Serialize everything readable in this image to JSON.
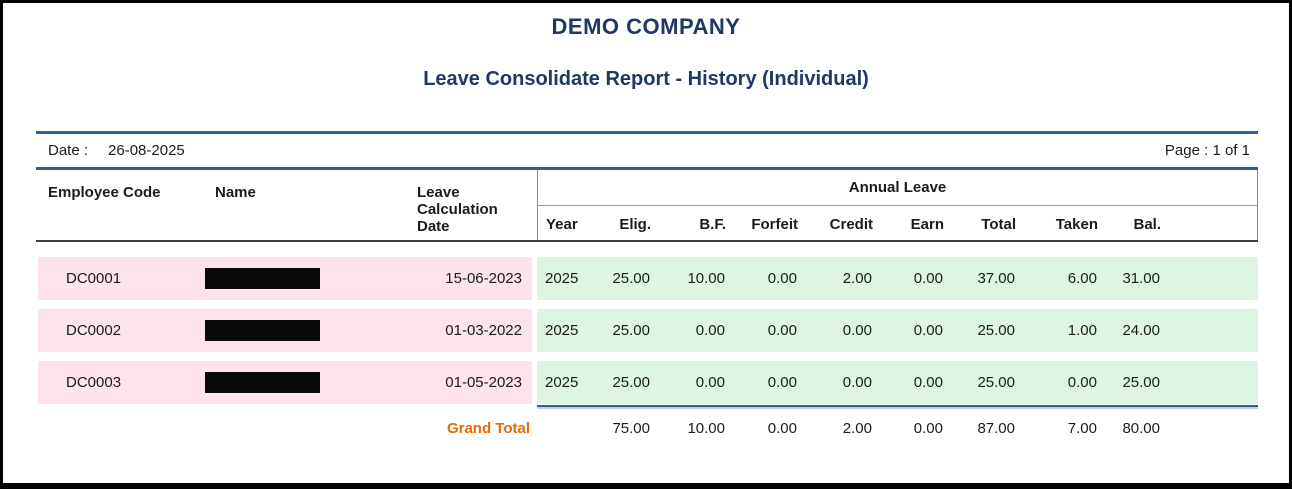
{
  "report": {
    "company_name": "DEMO COMPANY",
    "title": "Leave Consolidate Report - History (Individual)",
    "date_label": "Date :",
    "date_value": "26-08-2025",
    "page_info": "Page : 1 of 1"
  },
  "table": {
    "headers": {
      "employee_code": "Employee Code",
      "name": "Name",
      "leave_calc_line1": "Leave",
      "leave_calc_line2": "Calculation",
      "leave_calc_line3": "Date",
      "group": "Annual Leave",
      "columns": [
        "Year",
        "Elig.",
        "B.F.",
        "Forfeit",
        "Credit",
        "Earn",
        "Total",
        "Taken",
        "Bal."
      ]
    },
    "rows": [
      {
        "employee_code": "DC0001",
        "leave_calc_date": "15-06-2023",
        "year": "2025",
        "values": [
          "25.00",
          "10.00",
          "0.00",
          "2.00",
          "0.00",
          "37.00",
          "6.00",
          "31.00"
        ]
      },
      {
        "employee_code": "DC0002",
        "leave_calc_date": "01-03-2022",
        "year": "2025",
        "values": [
          "25.00",
          "0.00",
          "0.00",
          "0.00",
          "0.00",
          "25.00",
          "1.00",
          "24.00"
        ]
      },
      {
        "employee_code": "DC0003",
        "leave_calc_date": "01-05-2023",
        "year": "2025",
        "values": [
          "25.00",
          "0.00",
          "0.00",
          "0.00",
          "0.00",
          "25.00",
          "0.00",
          "25.00"
        ]
      }
    ],
    "grand_total": {
      "label": "Grand Total",
      "values": [
        "75.00",
        "10.00",
        "0.00",
        "2.00",
        "0.00",
        "87.00",
        "7.00",
        "80.00"
      ]
    }
  },
  "colors": {
    "title_navy": "#1f3864",
    "rule_blue": "#2e6094",
    "row_pink": "#fce3ed",
    "row_green": "#ddf5e2",
    "grand_total_orange": "#e36c09",
    "redaction_black": "#0a0a0a"
  }
}
